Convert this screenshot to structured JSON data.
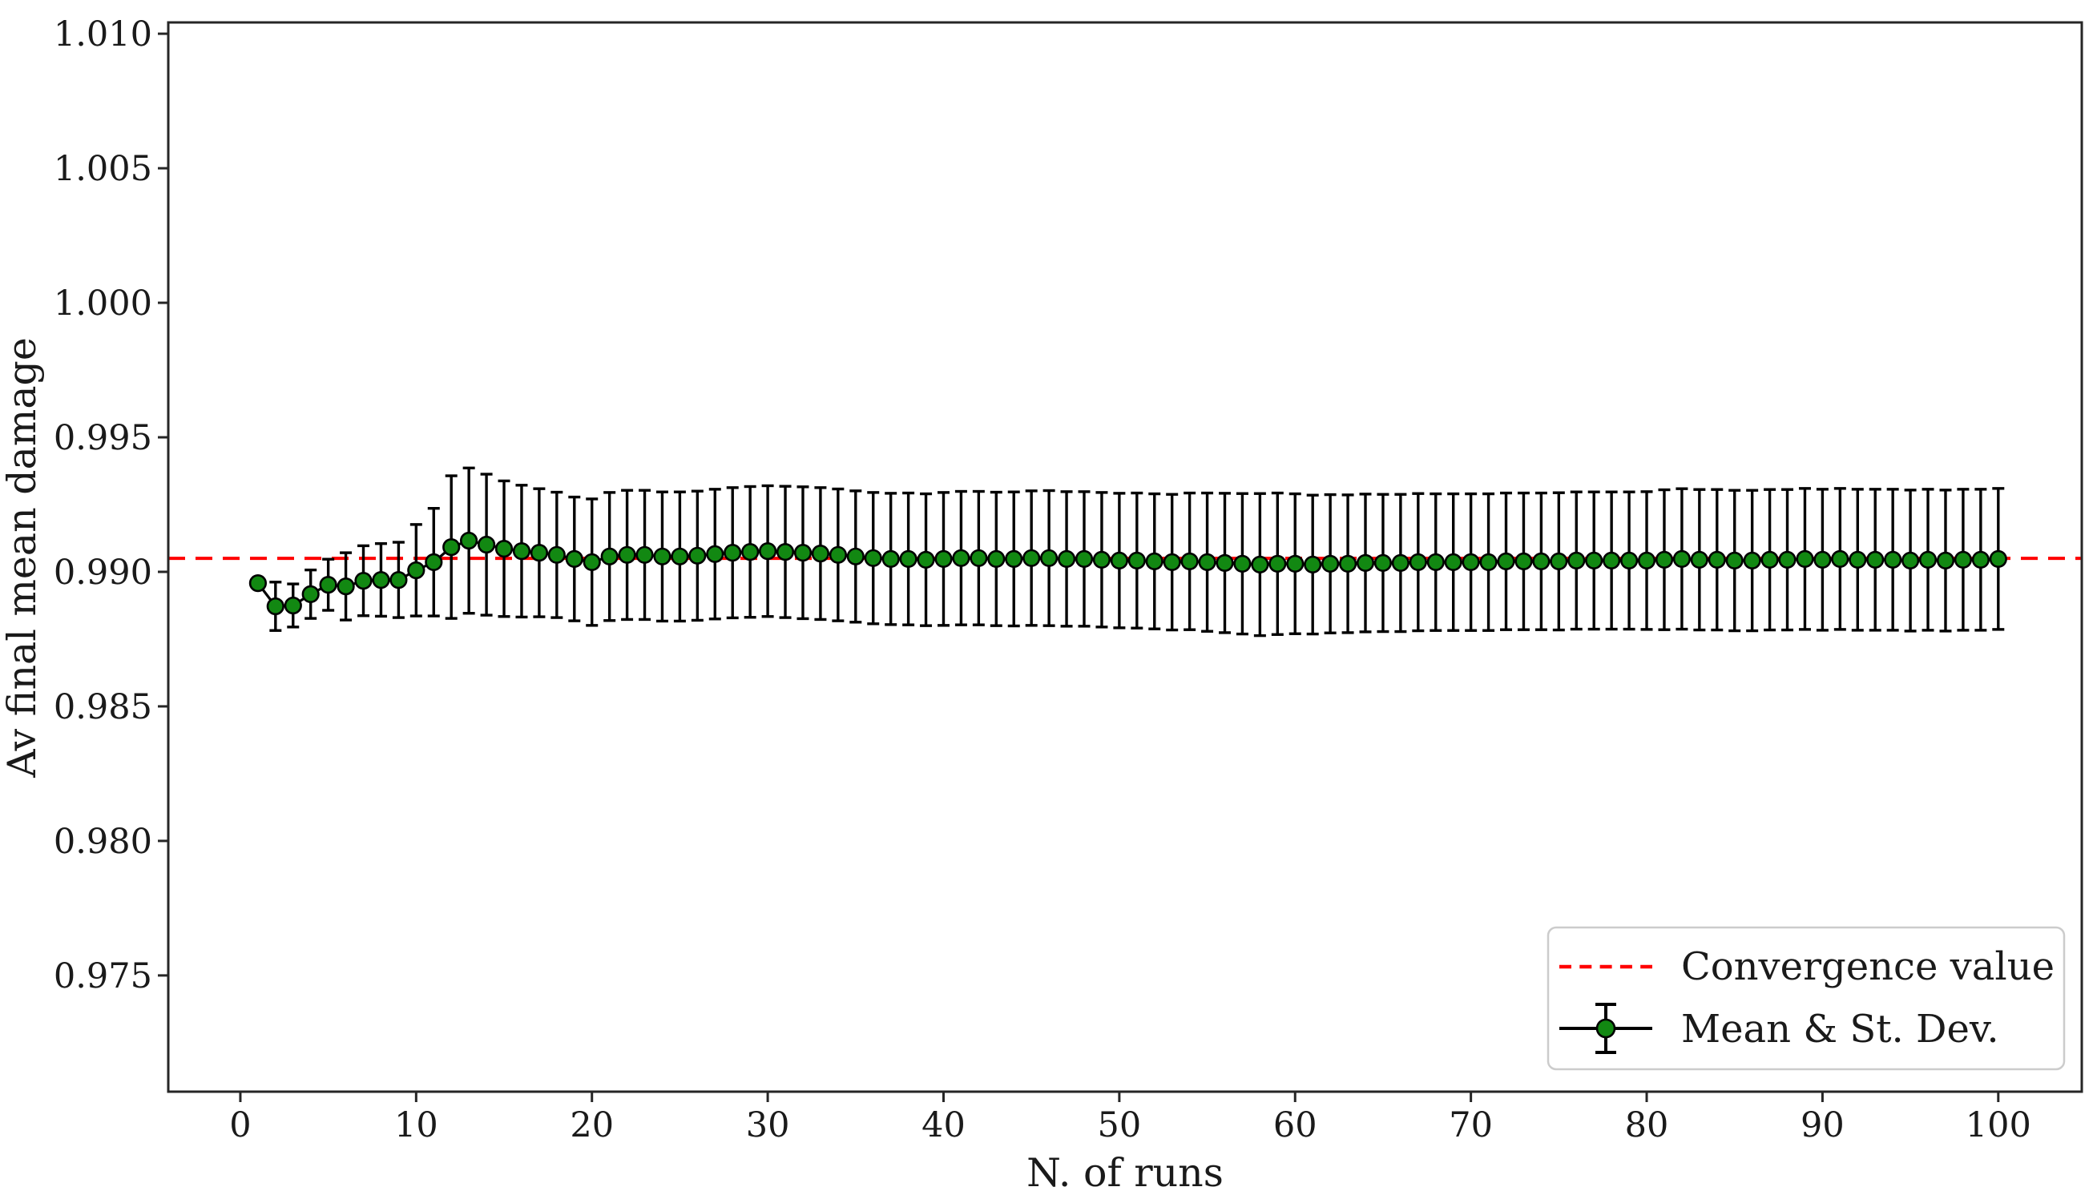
{
  "figure": {
    "background": "#ffffff"
  },
  "chart_data": {
    "type": "line",
    "variant": "errorbar_with_markers",
    "title": "",
    "xlabel": "N. of runs",
    "ylabel": "Av final mean damage",
    "xlim": [
      -4.1,
      104.75
    ],
    "ylim": [
      0.97068,
      1.01042
    ],
    "xticks": [
      0,
      10,
      20,
      30,
      40,
      50,
      60,
      70,
      80,
      90,
      100
    ],
    "yticks": [
      0.975,
      0.98,
      0.985,
      0.99,
      0.995,
      1.0,
      1.005,
      1.01
    ],
    "grid": false,
    "legend": {
      "position": "lower right",
      "entries": [
        "Convergence value",
        "Mean & St. Dev."
      ]
    },
    "colors": {
      "marker_fill": "#128812",
      "marker_edge": "#000000",
      "error_bar": "#000000",
      "mean_line": "#000000",
      "convergence_line": "#ff0000",
      "spine": "#262626",
      "text": "#1a1a1a",
      "legend_border": "#cccccc",
      "legend_fill": "#ffffff"
    },
    "series": [
      {
        "name": "Convergence value",
        "kind": "hline",
        "y": 0.9905,
        "style": "dashed",
        "color": "#ff0000"
      },
      {
        "name": "Mean & St. Dev.",
        "kind": "errorbar",
        "color": "#128812",
        "points_format": [
          "run",
          "mean",
          "std_dev"
        ],
        "points": [
          [
            1,
            0.98958,
            0
          ],
          [
            2,
            0.98872,
            0.0009
          ],
          [
            3,
            0.98875,
            0.0008
          ],
          [
            4,
            0.98917,
            0.0009
          ],
          [
            5,
            0.98952,
            0.00095
          ],
          [
            6,
            0.98946,
            0.00125
          ],
          [
            7,
            0.98967,
            0.0013
          ],
          [
            8,
            0.9897,
            0.00135
          ],
          [
            9,
            0.9897,
            0.0014
          ],
          [
            10,
            0.99006,
            0.0017
          ],
          [
            11,
            0.99036,
            0.002
          ],
          [
            12,
            0.99092,
            0.00265
          ],
          [
            13,
            0.99116,
            0.0027
          ],
          [
            14,
            0.99101,
            0.00262
          ],
          [
            15,
            0.99086,
            0.00252
          ],
          [
            16,
            0.99077,
            0.00245
          ],
          [
            17,
            0.99071,
            0.00238
          ],
          [
            18,
            0.99063,
            0.00233
          ],
          [
            19,
            0.99048,
            0.0023
          ],
          [
            20,
            0.99036,
            0.00235
          ],
          [
            21,
            0.99057,
            0.00238
          ],
          [
            22,
            0.99063,
            0.0024
          ],
          [
            23,
            0.99063,
            0.0024
          ],
          [
            24,
            0.99057,
            0.0024
          ],
          [
            25,
            0.99057,
            0.0024
          ],
          [
            26,
            0.9906,
            0.0024
          ],
          [
            27,
            0.99066,
            0.00241
          ],
          [
            28,
            0.99071,
            0.00242
          ],
          [
            29,
            0.99074,
            0.00243
          ],
          [
            30,
            0.99077,
            0.00243
          ],
          [
            31,
            0.99074,
            0.00244
          ],
          [
            32,
            0.99071,
            0.00245
          ],
          [
            33,
            0.99068,
            0.00245
          ],
          [
            34,
            0.99063,
            0.00245
          ],
          [
            35,
            0.99057,
            0.00244
          ],
          [
            36,
            0.99051,
            0.00244
          ],
          [
            37,
            0.99048,
            0.00244
          ],
          [
            38,
            0.99048,
            0.00245
          ],
          [
            39,
            0.99045,
            0.00245
          ],
          [
            40,
            0.99048,
            0.00247
          ],
          [
            41,
            0.99051,
            0.00248
          ],
          [
            42,
            0.99051,
            0.00248
          ],
          [
            43,
            0.99048,
            0.00248
          ],
          [
            44,
            0.99048,
            0.00249
          ],
          [
            45,
            0.99051,
            0.0025
          ],
          [
            46,
            0.99051,
            0.00251
          ],
          [
            47,
            0.99048,
            0.0025
          ],
          [
            48,
            0.99048,
            0.0025
          ],
          [
            49,
            0.99045,
            0.0025
          ],
          [
            50,
            0.99042,
            0.0025
          ],
          [
            51,
            0.99042,
            0.00251
          ],
          [
            52,
            0.99039,
            0.00251
          ],
          [
            53,
            0.99036,
            0.00252
          ],
          [
            54,
            0.99039,
            0.00254
          ],
          [
            55,
            0.99036,
            0.00257
          ],
          [
            56,
            0.99033,
            0.00259
          ],
          [
            57,
            0.9903,
            0.00261
          ],
          [
            58,
            0.99027,
            0.00264
          ],
          [
            59,
            0.9903,
            0.00263
          ],
          [
            60,
            0.9903,
            0.0026
          ],
          [
            61,
            0.99027,
            0.00258
          ],
          [
            62,
            0.9903,
            0.00257
          ],
          [
            63,
            0.9903,
            0.00256
          ],
          [
            64,
            0.99033,
            0.00256
          ],
          [
            65,
            0.99033,
            0.00255
          ],
          [
            66,
            0.99033,
            0.00255
          ],
          [
            67,
            0.99036,
            0.00255
          ],
          [
            68,
            0.99036,
            0.00254
          ],
          [
            69,
            0.99036,
            0.00254
          ],
          [
            70,
            0.99036,
            0.00254
          ],
          [
            71,
            0.99036,
            0.00254
          ],
          [
            72,
            0.99039,
            0.00254
          ],
          [
            73,
            0.99039,
            0.00254
          ],
          [
            74,
            0.99039,
            0.00254
          ],
          [
            75,
            0.99039,
            0.00255
          ],
          [
            76,
            0.99042,
            0.00255
          ],
          [
            77,
            0.99042,
            0.00255
          ],
          [
            78,
            0.99042,
            0.00255
          ],
          [
            79,
            0.99042,
            0.00255
          ],
          [
            80,
            0.99042,
            0.00256
          ],
          [
            81,
            0.99045,
            0.0026
          ],
          [
            82,
            0.99048,
            0.00261
          ],
          [
            83,
            0.99045,
            0.00261
          ],
          [
            84,
            0.99045,
            0.00261
          ],
          [
            85,
            0.99042,
            0.00261
          ],
          [
            86,
            0.99042,
            0.00261
          ],
          [
            87,
            0.99045,
            0.00261
          ],
          [
            88,
            0.99045,
            0.00261
          ],
          [
            89,
            0.99048,
            0.00262
          ],
          [
            90,
            0.99045,
            0.00262
          ],
          [
            91,
            0.99048,
            0.00262
          ],
          [
            92,
            0.99045,
            0.00262
          ],
          [
            93,
            0.99045,
            0.00262
          ],
          [
            94,
            0.99045,
            0.00262
          ],
          [
            95,
            0.99042,
            0.00262
          ],
          [
            96,
            0.99045,
            0.00262
          ],
          [
            97,
            0.99042,
            0.00262
          ],
          [
            98,
            0.99045,
            0.00262
          ],
          [
            99,
            0.99045,
            0.00262
          ],
          [
            100,
            0.99048,
            0.00262
          ]
        ]
      }
    ]
  }
}
